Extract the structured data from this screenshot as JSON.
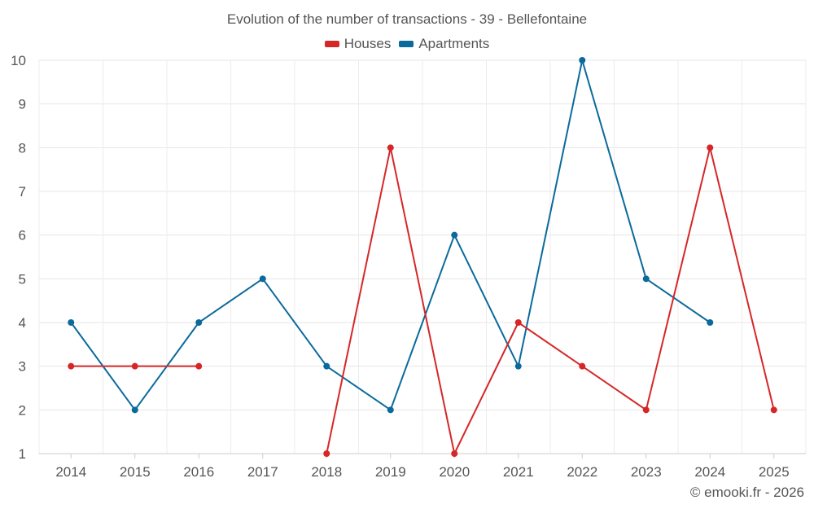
{
  "chart_data": {
    "type": "line",
    "title": "Evolution of the number of transactions - 39 - Bellefontaine",
    "categories": [
      "2014",
      "2015",
      "2016",
      "2017",
      "2018",
      "2019",
      "2020",
      "2021",
      "2022",
      "2023",
      "2024",
      "2025"
    ],
    "series": [
      {
        "name": "Houses",
        "color": "#d62728",
        "values": [
          3,
          3,
          3,
          null,
          1,
          8,
          1,
          4,
          3,
          2,
          8,
          2
        ]
      },
      {
        "name": "Apartments",
        "color": "#0b6a9c",
        "values": [
          4,
          2,
          4,
          5,
          3,
          2,
          6,
          3,
          10,
          5,
          4,
          null
        ]
      }
    ],
    "ylim": [
      1,
      10
    ],
    "yticks": [
      1,
      2,
      3,
      4,
      5,
      6,
      7,
      8,
      9,
      10
    ],
    "grid": true,
    "legend_position": "top-center"
  },
  "credit": "© emooki.fr - 2026"
}
